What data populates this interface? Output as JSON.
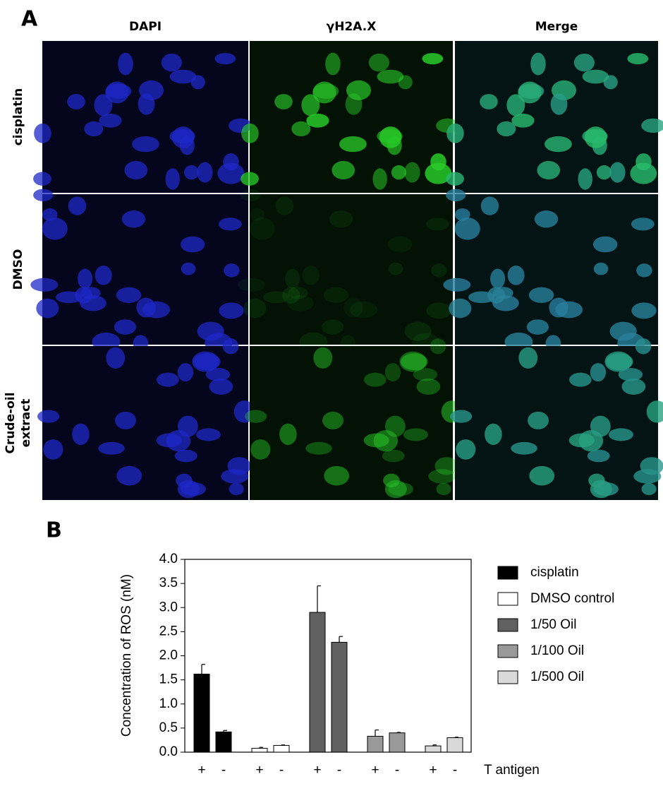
{
  "panel_a": {
    "label": "A",
    "columns": [
      "DAPI",
      "γH2A.X",
      "Merge"
    ],
    "rows": [
      [
        "cisplatin"
      ],
      [
        "DMSO"
      ],
      [
        "Crude-oil",
        "extract"
      ]
    ]
  },
  "chart_data": {
    "type": "bar",
    "panel_label": "B",
    "ylabel": "Concentration of ROS (nM)",
    "xlabel": "T antigen",
    "categories": [
      "+",
      "-",
      "+",
      "-",
      "+",
      "-",
      "+",
      "-",
      "+",
      "-"
    ],
    "ylim": [
      0,
      4
    ],
    "yticks": [
      {
        "value": 0,
        "label": "0.0"
      },
      0.5,
      {
        "value": 1,
        "label": "1.0"
      },
      1.5,
      {
        "value": 2,
        "label": "2.0"
      },
      2.5,
      {
        "value": 3,
        "label": "3.0"
      },
      3.5,
      {
        "value": 4,
        "label": "4.0"
      }
    ],
    "series": [
      {
        "name": "cisplatin",
        "color": "#000000",
        "values": [
          1.62,
          0.42,
          null,
          null,
          null,
          null,
          null,
          null,
          null,
          null
        ],
        "errors": [
          0.2,
          0.03,
          null,
          null,
          null,
          null,
          null,
          null,
          null,
          null
        ]
      },
      {
        "name": "DMSO control",
        "color": "#ffffff",
        "values": [
          null,
          null,
          0.08,
          0.14,
          null,
          null,
          null,
          null,
          null,
          null
        ],
        "errors": [
          null,
          null,
          0.02,
          0.01,
          null,
          null,
          null,
          null,
          null,
          null
        ]
      },
      {
        "name": "1/50 Oil",
        "color": "#606060",
        "values": [
          null,
          null,
          null,
          null,
          2.9,
          2.28,
          null,
          null,
          null,
          null
        ],
        "errors": [
          null,
          null,
          null,
          null,
          0.55,
          0.12,
          null,
          null,
          null,
          null
        ]
      },
      {
        "name": "1/100 Oil",
        "color": "#999999",
        "values": [
          null,
          null,
          null,
          null,
          null,
          null,
          0.33,
          0.4,
          null,
          null
        ],
        "errors": [
          null,
          null,
          null,
          null,
          null,
          null,
          0.13,
          0.01,
          null,
          null
        ]
      },
      {
        "name": "1/500 Oil",
        "color": "#d9d9d9",
        "values": [
          null,
          null,
          null,
          null,
          null,
          null,
          null,
          null,
          0.13,
          0.3
        ],
        "errors": [
          null,
          null,
          null,
          null,
          null,
          null,
          null,
          null,
          0.02,
          0.01
        ]
      }
    ]
  }
}
